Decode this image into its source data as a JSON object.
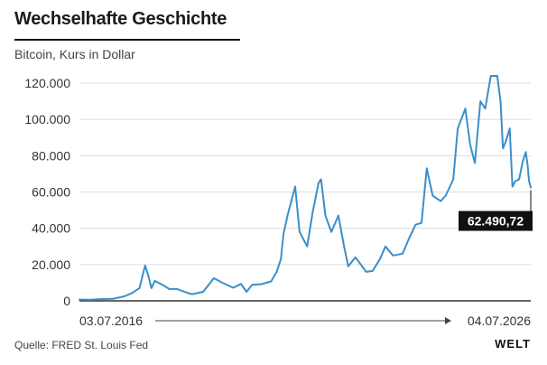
{
  "header": {
    "title": "Wechselhafte Geschichte",
    "subtitle": "Bitcoin, Kurs in Dollar"
  },
  "footer": {
    "source": "Quelle: FRED St. Louis Fed",
    "logo": "WELT"
  },
  "colors": {
    "line": "#3a8fcb",
    "grid": "#dddddd",
    "axis": "#333333",
    "label_bg": "#111111",
    "label_fg": "#ffffff"
  },
  "chart_data": {
    "type": "line",
    "title": "Wechselhafte Geschichte",
    "subtitle": "Bitcoin, Kurs in Dollar",
    "x_start_label": "03.07.2016",
    "x_end_label": "04.07.2026",
    "ylim": [
      0,
      125000
    ],
    "y_ticks": [
      0,
      20000,
      40000,
      60000,
      80000,
      100000,
      120000
    ],
    "y_tick_labels": [
      "0",
      "20.000",
      "40.000",
      "60.000",
      "80.000",
      "100.000",
      "120.000"
    ],
    "grid": true,
    "last_value_label": "62.490,72",
    "series": [
      {
        "x": [
          "2016-07-03",
          "2016-10-01",
          "2017-01-01",
          "2017-04-01",
          "2017-07-01",
          "2017-09-01",
          "2017-11-01",
          "2017-12-17",
          "2018-01-15",
          "2018-02-06",
          "2018-03-05",
          "2018-05-01",
          "2018-07-01",
          "2018-09-01",
          "2018-11-20",
          "2019-01-01",
          "2019-04-01",
          "2019-06-26",
          "2019-09-01",
          "2019-12-01",
          "2020-02-01",
          "2020-03-16",
          "2020-05-01",
          "2020-07-15",
          "2020-10-01",
          "2020-11-15",
          "2020-12-20",
          "2021-01-10",
          "2021-02-15",
          "2021-04-14",
          "2021-05-20",
          "2021-07-20",
          "2021-09-01",
          "2021-10-20",
          "2021-11-10",
          "2021-12-15",
          "2022-02-01",
          "2022-03-30",
          "2022-05-15",
          "2022-06-18",
          "2022-08-15",
          "2022-11-10",
          "2023-01-01",
          "2023-03-01",
          "2023-04-15",
          "2023-06-15",
          "2023-09-01",
          "2023-10-20",
          "2023-12-15",
          "2024-02-01",
          "2024-03-14",
          "2024-05-01",
          "2024-07-05",
          "2024-08-15",
          "2024-10-15",
          "2024-11-20",
          "2025-01-20",
          "2025-03-01",
          "2025-04-08",
          "2025-05-22",
          "2025-07-01",
          "2025-08-14",
          "2025-10-06",
          "2025-11-01",
          "2025-11-21",
          "2025-12-15",
          "2026-01-15",
          "2026-02-06",
          "2026-03-01",
          "2026-04-01",
          "2026-05-01",
          "2026-05-25",
          "2026-06-10",
          "2026-06-20",
          "2026-07-04"
        ],
        "values": [
          700,
          600,
          1000,
          1100,
          2500,
          4300,
          7000,
          19500,
          13000,
          7000,
          11000,
          9000,
          6500,
          6500,
          4500,
          3700,
          5000,
          12500,
          10000,
          7200,
          9300,
          5000,
          8800,
          9200,
          10700,
          16000,
          23000,
          37000,
          48000,
          63000,
          38000,
          30000,
          48000,
          65000,
          67000,
          47000,
          38000,
          47000,
          30000,
          19000,
          24000,
          16000,
          16500,
          23000,
          30000,
          25000,
          26000,
          34000,
          42000,
          43000,
          73000,
          58000,
          55000,
          58000,
          67000,
          95000,
          106000,
          86000,
          76000,
          110000,
          106000,
          124000,
          124000,
          110000,
          84000,
          88000,
          95000,
          63000,
          66000,
          67000,
          77000,
          82000,
          74000,
          66000,
          62490.72
        ]
      }
    ]
  }
}
